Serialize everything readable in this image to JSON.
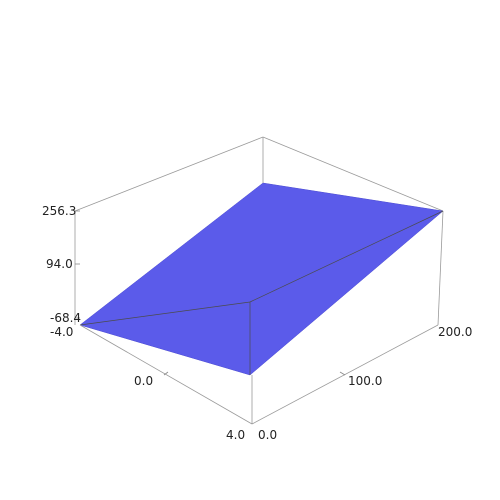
{
  "chart_data": {
    "type": "surface-3d",
    "surface_color": "#5b5bea",
    "axes": {
      "z": {
        "range": [
          -68.4,
          256.3
        ],
        "ticks": [
          "256.3",
          "94.0",
          "-68.4"
        ]
      },
      "x": {
        "range": [
          -4.0,
          4.0
        ],
        "ticks": [
          "-4.0",
          "0.0",
          "4.0"
        ]
      },
      "y": {
        "range": [
          0.0,
          200.0
        ],
        "ticks": [
          "0.0",
          "100.0",
          "200.0"
        ]
      }
    },
    "surface_corners": [
      {
        "x": -4.0,
        "y": 0.0,
        "z": -68.4
      },
      {
        "x": 4.0,
        "y": 0.0,
        "z": -68.4
      },
      {
        "x": 4.0,
        "y": 200.0,
        "z": 256.3
      },
      {
        "x": -4.0,
        "y": 200.0,
        "z": 256.3
      }
    ]
  }
}
